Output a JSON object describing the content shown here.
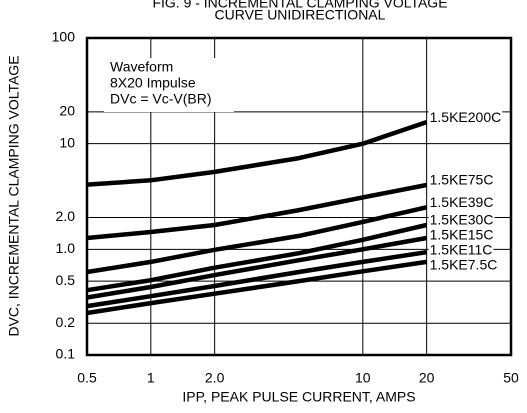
{
  "chart_data": {
    "type": "line",
    "title": "FIG. 9 - INCREMENTAL CLAMPING VOLTAGE",
    "subtitle": "CURVE UNIDIRECTIONAL",
    "x_label": "IPP, PEAK PULSE CURRENT, AMPS",
    "y_label": "DVC, INCREMENTAL CLAMPING VOLTAGE",
    "annotation": [
      "Waveform",
      "8X20 Impulse",
      "DVc = Vc-V(BR)"
    ],
    "log_x": true,
    "log_y": true,
    "grid": true,
    "x": [
      0.5,
      1,
      2,
      5,
      10,
      20
    ],
    "xlim": [
      0.5,
      50
    ],
    "xticks": [
      0.5,
      1,
      {
        "value": 2,
        "label": "2.0"
      },
      10,
      20,
      50
    ],
    "ylim": [
      0.1,
      100
    ],
    "yticks": [
      100,
      20,
      10,
      {
        "value": 2,
        "label": "2.0"
      },
      {
        "value": 1,
        "label": "1.0"
      },
      0.5,
      0.2,
      0.1
    ],
    "series": [
      {
        "name": "1.5KE200C",
        "color": "#000000",
        "values": [
          4.1,
          4.5,
          5.4,
          7.3,
          10,
          16
        ]
      },
      {
        "name": "1.5KE75C",
        "color": "#000000",
        "values": [
          1.28,
          1.46,
          1.7,
          2.35,
          3.1,
          4.06
        ]
      },
      {
        "name": "1.5KE39C",
        "color": "#000000",
        "values": [
          0.61,
          0.76,
          0.99,
          1.34,
          1.82,
          2.5
        ]
      },
      {
        "name": "1.5KE30C",
        "color": "#000000",
        "values": [
          0.41,
          0.51,
          0.67,
          0.92,
          1.23,
          1.7
        ]
      },
      {
        "name": "1.5KE15C",
        "color": "#000000",
        "values": [
          0.35,
          0.44,
          0.57,
          0.79,
          1.0,
          1.28
        ]
      },
      {
        "name": "1.5KE11C",
        "color": "#000000",
        "values": [
          0.29,
          0.36,
          0.45,
          0.61,
          0.76,
          0.94
        ]
      },
      {
        "name": "1.5KE7.5C",
        "color": "#000000",
        "values": [
          0.25,
          0.31,
          0.38,
          0.5,
          0.62,
          0.76
        ]
      }
    ]
  }
}
